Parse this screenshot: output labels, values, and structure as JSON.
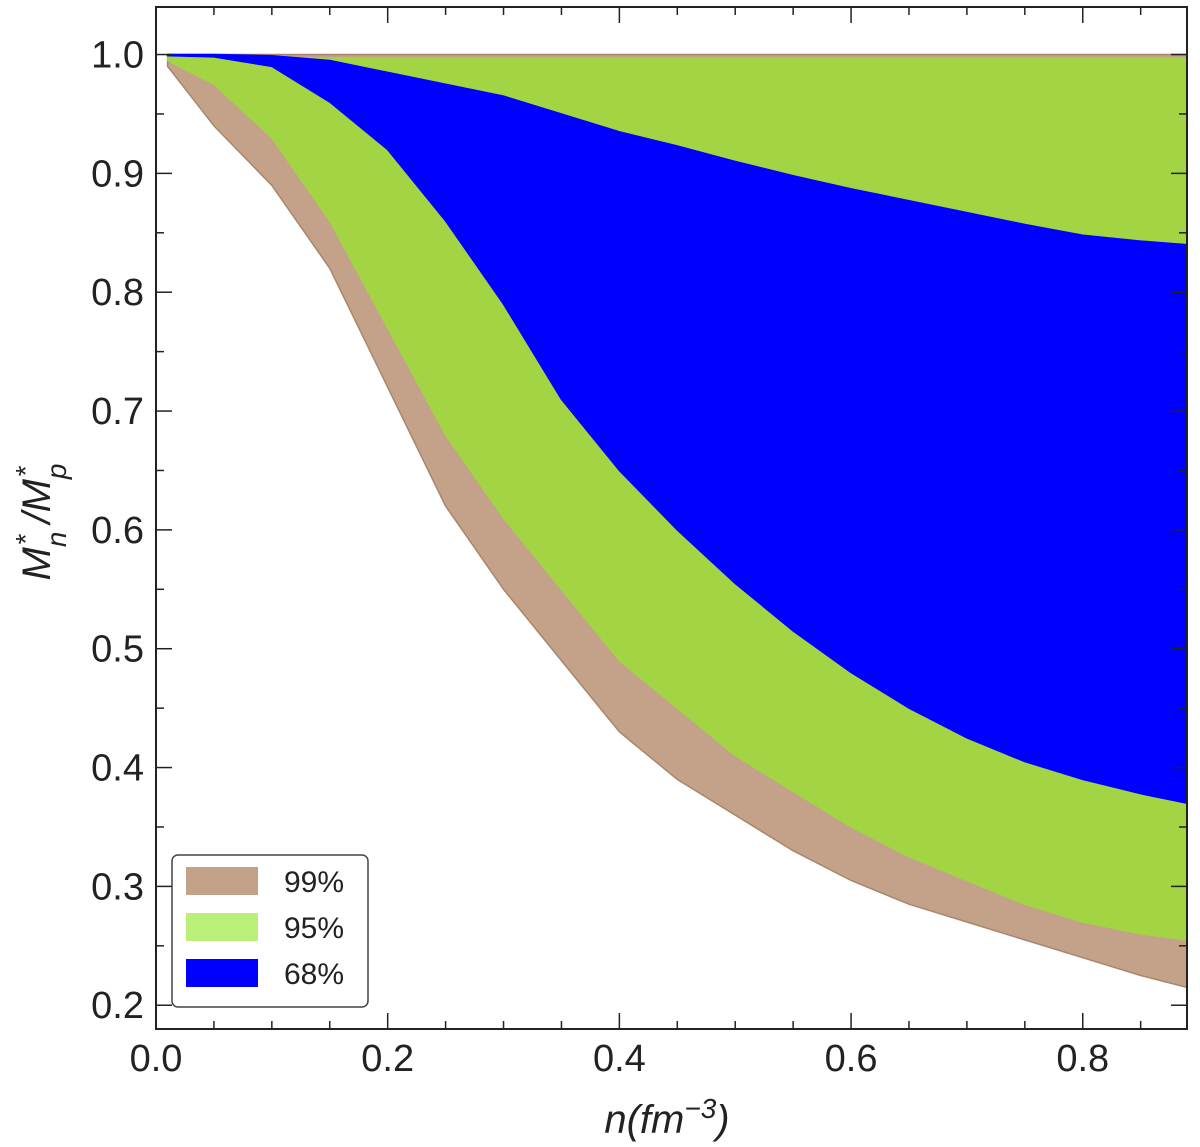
{
  "chart_data": {
    "type": "area",
    "title": "",
    "xlabel": {
      "base": "n(fm",
      "sup": "−3",
      "tail": ")"
    },
    "ylabel": {
      "m1": "M",
      "sub1": "n",
      "sup1": "*",
      "slash": " /M",
      "sub2": "p",
      "sup2": "*"
    },
    "xlim": [
      0.0,
      0.89
    ],
    "ylim": [
      0.18,
      1.04
    ],
    "xticks": [
      "0.0",
      "0.2",
      "0.4",
      "0.6",
      "0.8"
    ],
    "yticks": [
      "1.0",
      "0.9",
      "0.8",
      "0.7",
      "0.6",
      "0.5",
      "0.4",
      "0.3",
      "0.2"
    ],
    "legend_position": "bottom-left",
    "x": [
      0.01,
      0.05,
      0.1,
      0.15,
      0.2,
      0.25,
      0.3,
      0.35,
      0.4,
      0.45,
      0.5,
      0.55,
      0.6,
      0.65,
      0.7,
      0.75,
      0.8,
      0.85,
      0.89
    ],
    "series": [
      {
        "name": "99%",
        "color": "#c4a28a",
        "upper": [
          1.0,
          1.0,
          1.0,
          1.0,
          1.0,
          1.0,
          1.0,
          1.0,
          1.0,
          1.0,
          1.0,
          1.0,
          1.0,
          1.0,
          1.0,
          1.0,
          1.0,
          1.0,
          1.0
        ],
        "lower": [
          0.99,
          0.94,
          0.89,
          0.82,
          0.72,
          0.62,
          0.55,
          0.49,
          0.43,
          0.39,
          0.36,
          0.33,
          0.305,
          0.285,
          0.27,
          0.255,
          0.24,
          0.225,
          0.215
        ]
      },
      {
        "name": "95%",
        "color": "#a3d444",
        "upper": [
          0.999,
          0.998,
          0.997,
          0.997,
          0.997,
          0.997,
          0.997,
          0.997,
          0.997,
          0.997,
          0.997,
          0.997,
          0.997,
          0.997,
          0.997,
          0.997,
          0.997,
          0.997,
          0.997
        ],
        "lower": [
          0.995,
          0.975,
          0.93,
          0.86,
          0.77,
          0.68,
          0.61,
          0.55,
          0.49,
          0.45,
          0.41,
          0.38,
          0.35,
          0.325,
          0.305,
          0.285,
          0.27,
          0.26,
          0.255
        ]
      },
      {
        "name": "68%",
        "color": "#0000ff",
        "upper": [
          1.0,
          1.0,
          0.999,
          0.995,
          0.985,
          0.975,
          0.965,
          0.95,
          0.935,
          0.923,
          0.91,
          0.898,
          0.887,
          0.877,
          0.867,
          0.857,
          0.848,
          0.843,
          0.84
        ],
        "lower": [
          0.999,
          0.998,
          0.99,
          0.96,
          0.92,
          0.86,
          0.79,
          0.71,
          0.65,
          0.6,
          0.555,
          0.515,
          0.48,
          0.45,
          0.425,
          0.405,
          0.39,
          0.378,
          0.37
        ]
      }
    ]
  }
}
